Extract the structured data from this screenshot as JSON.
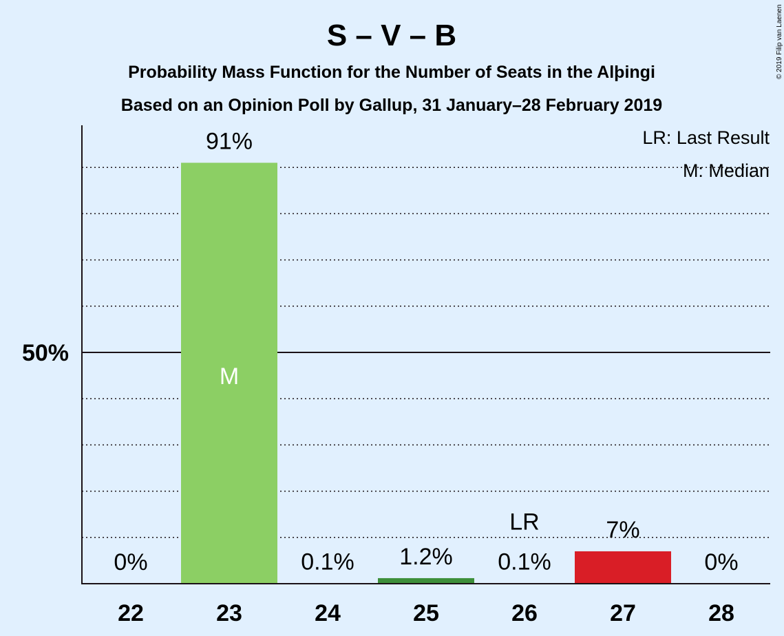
{
  "title": "S – V – B",
  "subtitle1": "Probability Mass Function for the Number of Seats in the Alþingi",
  "subtitle2": "Based on an Opinion Poll by Gallup, 31 January–28 February 2019",
  "copyright": "© 2019 Filip van Laenen",
  "legend": {
    "lr": "LR: Last Result",
    "median": "M: Median"
  },
  "chart_data": {
    "type": "bar",
    "categories": [
      "22",
      "23",
      "24",
      "25",
      "26",
      "27",
      "28"
    ],
    "values": [
      0,
      91,
      0.1,
      1.2,
      0.1,
      7,
      0
    ],
    "value_labels": [
      "0%",
      "91%",
      "0.1%",
      "1.2%",
      "0.1%",
      "7%",
      "0%"
    ],
    "bar_colors": [
      "#8ccf64",
      "#8ccf64",
      "#8ccf64",
      "#3d8f3a",
      "#3d8f3a",
      "#d91e26",
      "#d91e26"
    ],
    "median_index": 1,
    "median_marker": "M",
    "last_result_index": 4,
    "last_result_marker": "LR",
    "ytick_labels": [
      "50%"
    ],
    "ytick_values": [
      50
    ],
    "ylim": [
      0,
      100
    ],
    "grid_step": 10,
    "grid": true,
    "legend_position": "top-right"
  }
}
